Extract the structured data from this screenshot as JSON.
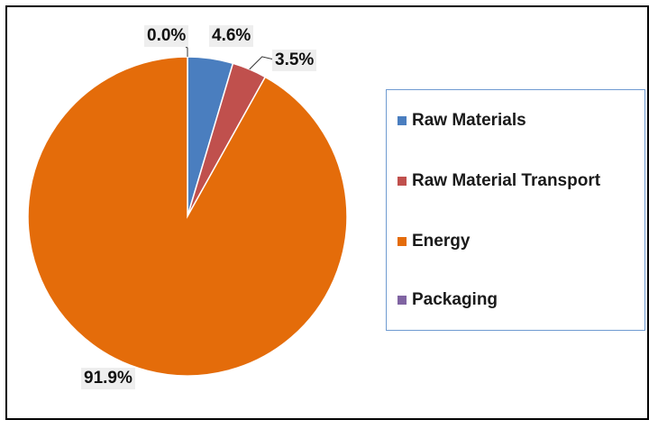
{
  "chart_data": {
    "type": "pie",
    "title": "",
    "categories": [
      "Raw Materials",
      "Raw Material Transport",
      "Energy",
      "Packaging"
    ],
    "values": [
      4.6,
      3.5,
      91.9,
      0.0
    ],
    "value_labels": [
      "4.6%",
      "3.5%",
      "91.9%",
      "0.0%"
    ],
    "colors": [
      "#4a7ebf",
      "#c0504d",
      "#e46c0a",
      "#8064a2"
    ],
    "legend_position": "right",
    "start_angle": "12 o'clock, clockwise"
  }
}
